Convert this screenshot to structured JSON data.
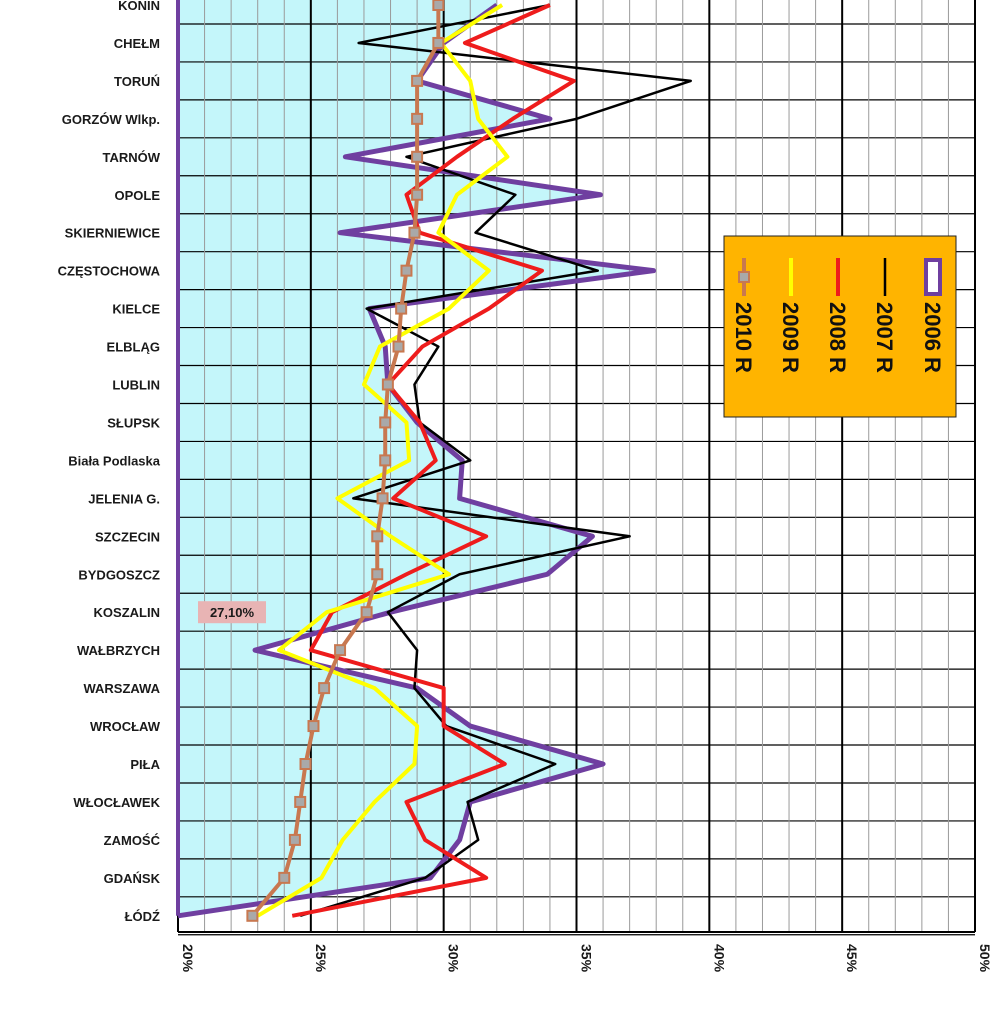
{
  "chart_data": {
    "type": "line",
    "orientation": "rotated",
    "categories": [
      "KONIN",
      "CHEŁM",
      "TORUŃ",
      "GORZÓW Wlkp.",
      "TARNÓW",
      "OPOLE",
      "SKIERNIEWICE",
      "CZĘSTOCHOWA",
      "KIELCE",
      "ELBLĄG",
      "LUBLIN",
      "SŁUPSK",
      "Biała Podlaska",
      "JELENIA G.",
      "SZCZECIN",
      "BYDGOSZCZ",
      "KOSZALIN",
      "WAŁBRZYCH",
      "WARSZAWA",
      "WROCŁAW",
      "PIŁA",
      "WŁOCŁAWEK",
      "ZAMOŚĆ",
      "GDAŃSK",
      "ŁÓDŹ"
    ],
    "xlim": [
      20,
      50
    ],
    "x_ticks": [
      20,
      25,
      30,
      35,
      40,
      45,
      50
    ],
    "x_tick_labels": [
      "20%",
      "25%",
      "30%",
      "35%",
      "40%",
      "45%",
      "50%"
    ],
    "grid": true,
    "legend_position": "right",
    "series": [
      {
        "name": "2006 R",
        "color": "#6f3fa0",
        "values": [
          32.0,
          30.0,
          29.0,
          34.0,
          26.3,
          35.9,
          26.1,
          37.9,
          27.2,
          27.8,
          27.9,
          29.0,
          30.7,
          30.6,
          35.6,
          33.9,
          28.0,
          22.9,
          29.0,
          31.0,
          36.0,
          31.0,
          30.6,
          29.5,
          20.0
        ]
      },
      {
        "name": "2007 R",
        "color": "#000000",
        "values": [
          34.0,
          26.8,
          39.3,
          35.0,
          28.6,
          32.7,
          31.2,
          35.8,
          27.1,
          29.8,
          28.9,
          29.1,
          31.0,
          26.6,
          37.0,
          30.6,
          27.9,
          29.0,
          28.9,
          30.1,
          34.2,
          30.9,
          31.3,
          29.3,
          24.6
        ]
      },
      {
        "name": "2008 R",
        "color": "#ee1c1c",
        "values": [
          34.0,
          30.8,
          34.9,
          32.6,
          30.5,
          28.6,
          29.1,
          33.7,
          31.7,
          29.2,
          27.9,
          29.1,
          29.7,
          28.1,
          31.6,
          28.6,
          25.8,
          25.0,
          30.0,
          30.0,
          32.3,
          28.6,
          29.3,
          31.6,
          24.3
        ]
      },
      {
        "name": "2009 R",
        "color": "#ffff00",
        "values": [
          32.2,
          29.9,
          31.0,
          31.3,
          32.4,
          30.5,
          29.8,
          31.7,
          30.2,
          27.6,
          27.0,
          28.6,
          28.7,
          26.0,
          28.0,
          30.2,
          25.6,
          23.8,
          27.4,
          29.0,
          28.9,
          27.4,
          26.2,
          25.4,
          23.0
        ]
      },
      {
        "name": "2010 R",
        "color": "#c87850",
        "values": [
          29.8,
          29.8,
          29.0,
          29.0,
          29.0,
          29.0,
          28.9,
          28.6,
          28.4,
          28.3,
          27.9,
          27.8,
          27.8,
          27.7,
          27.5,
          27.5,
          27.1,
          26.1,
          25.5,
          25.1,
          24.8,
          24.6,
          24.4,
          24.0,
          22.8
        ]
      }
    ],
    "annotations": [
      {
        "text": "27,10%",
        "category": "KOSZALIN"
      }
    ]
  }
}
